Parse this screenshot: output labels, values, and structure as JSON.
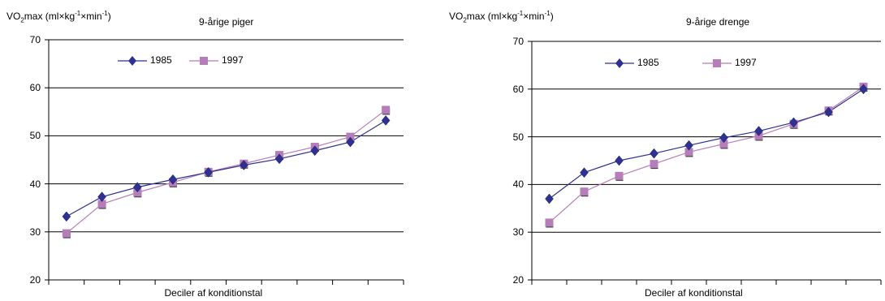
{
  "chart_data": [
    {
      "type": "line",
      "title": "9-årige piger",
      "ylabel_main": "VO",
      "ylabel_sub": "2",
      "ylabel_mid": "max (ml×kg",
      "ylabel_sup1": "-1",
      "ylabel_mid2": "×min",
      "ylabel_sup2": "-1",
      "ylabel_end": ")",
      "xlabel": "Deciler af konditionstal",
      "ylim": [
        20,
        70
      ],
      "yticks": [
        "20",
        "30",
        "40",
        "50",
        "60",
        "70"
      ],
      "grid": true,
      "legend_position": "top-center",
      "series": [
        {
          "name": "1985",
          "color": "#2e3192",
          "marker": "diamond",
          "values": [
            33.2,
            37.3,
            39.3,
            40.9,
            42.4,
            43.9,
            45.2,
            46.9,
            48.7,
            53.2
          ]
        },
        {
          "name": "1997",
          "color": "#b57eb8",
          "marker": "square",
          "values": [
            29.7,
            35.8,
            38.2,
            40.3,
            42.5,
            44.2,
            46.0,
            47.7,
            49.8,
            55.4
          ]
        }
      ]
    },
    {
      "type": "line",
      "title": "9-årige drenge",
      "ylabel_main": "VO",
      "ylabel_sub": "2",
      "ylabel_mid": "max (ml×kg",
      "ylabel_sup1": "-1",
      "ylabel_mid2": "×min",
      "ylabel_sup2": "-1",
      "ylabel_end": ")",
      "xlabel": "Deciler af konditionstal",
      "ylim": [
        20,
        70
      ],
      "yticks": [
        "20",
        "30",
        "40",
        "50",
        "60",
        "70"
      ],
      "grid": true,
      "legend_position": "top-center",
      "series": [
        {
          "name": "1985",
          "color": "#2e3192",
          "marker": "diamond",
          "values": [
            37.0,
            42.5,
            45.0,
            46.5,
            48.2,
            49.8,
            51.2,
            53.0,
            55.2,
            60.0
          ]
        },
        {
          "name": "1997",
          "color": "#b57eb8",
          "marker": "square",
          "values": [
            32.0,
            38.5,
            41.8,
            44.3,
            46.8,
            48.5,
            50.2,
            52.7,
            55.5,
            60.5
          ]
        }
      ]
    }
  ]
}
